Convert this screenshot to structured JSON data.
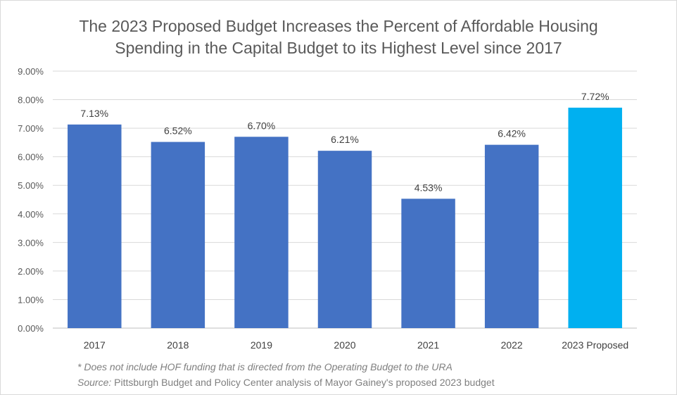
{
  "chart_data": {
    "type": "bar",
    "title_lines": [
      "The 2023 Proposed Budget Increases the Percent of Affordable Housing",
      "Spending in the Capital Budget to its Highest Level since 2017"
    ],
    "categories": [
      "2017",
      "2018",
      "2019",
      "2020",
      "2021",
      "2022",
      "2023 Proposed"
    ],
    "values": [
      7.13,
      6.52,
      6.7,
      6.21,
      4.53,
      6.42,
      7.72
    ],
    "value_labels": [
      "7.13%",
      "6.52%",
      "6.70%",
      "6.21%",
      "4.53%",
      "6.42%",
      "7.72%"
    ],
    "bar_colors": [
      "#4472c4",
      "#4472c4",
      "#4472c4",
      "#4472c4",
      "#4472c4",
      "#4472c4",
      "#00b0f0"
    ],
    "y_ticks": [
      0,
      1,
      2,
      3,
      4,
      5,
      6,
      7,
      8,
      9
    ],
    "y_tick_labels": [
      "0.00%",
      "1.00%",
      "2.00%",
      "3.00%",
      "4.00%",
      "5.00%",
      "6.00%",
      "7.00%",
      "8.00%",
      "9.00%"
    ],
    "ylim": [
      0,
      9
    ],
    "xlabel": "",
    "ylabel": "",
    "grid": true,
    "legend": "none"
  },
  "footnote": "* Does not include HOF funding that is directed from the Operating Budget to the URA",
  "source_label": "Source:",
  "source_text": " Pittsburgh Budget and Policy Center analysis of Mayor Gainey's proposed 2023 budget"
}
